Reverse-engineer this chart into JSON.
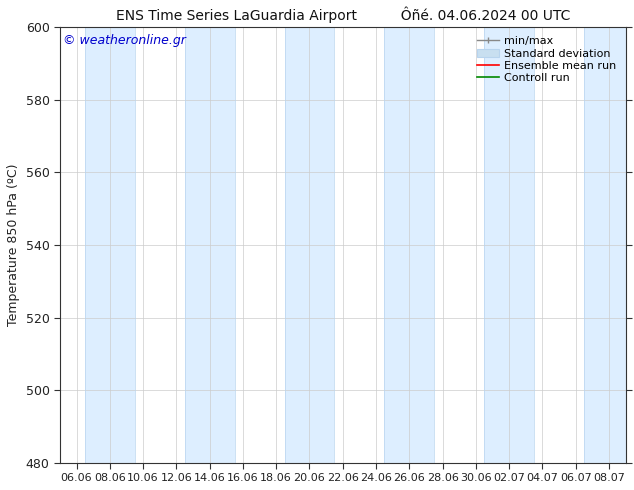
{
  "title_left": "ENS Time Series LaGuardia Airport",
  "title_right": "Ôñé. 04.06.2024 00 UTC",
  "ylabel": "Temperature 850 hPa (ºC)",
  "watermark": "© weatheronline.gr",
  "watermark_color": "#0000cc",
  "ylim": [
    480,
    600
  ],
  "yticks": [
    480,
    500,
    520,
    540,
    560,
    580,
    600
  ],
  "xtick_labels": [
    "06.06",
    "08.06",
    "10.06",
    "12.06",
    "14.06",
    "16.06",
    "18.06",
    "20.06",
    "22.06",
    "24.06",
    "26.06",
    "28.06",
    "30.06",
    "02.07",
    "04.07",
    "06.07",
    "08.07"
  ],
  "bg_color": "#ffffff",
  "plot_bg_color": "#ffffff",
  "shaded_band_color": "#ddeeff",
  "shaded_band_edge_color": "#b8d4ee",
  "legend_labels": [
    "min/max",
    "Standard deviation",
    "Ensemble mean run",
    "Controll run"
  ],
  "legend_minmax_color": "#888888",
  "legend_std_color": "#c8dff0",
  "legend_ens_color": "#ff0000",
  "legend_ctrl_color": "#008800",
  "font_size": 9,
  "title_fontsize": 10,
  "axis_color": "#333333"
}
